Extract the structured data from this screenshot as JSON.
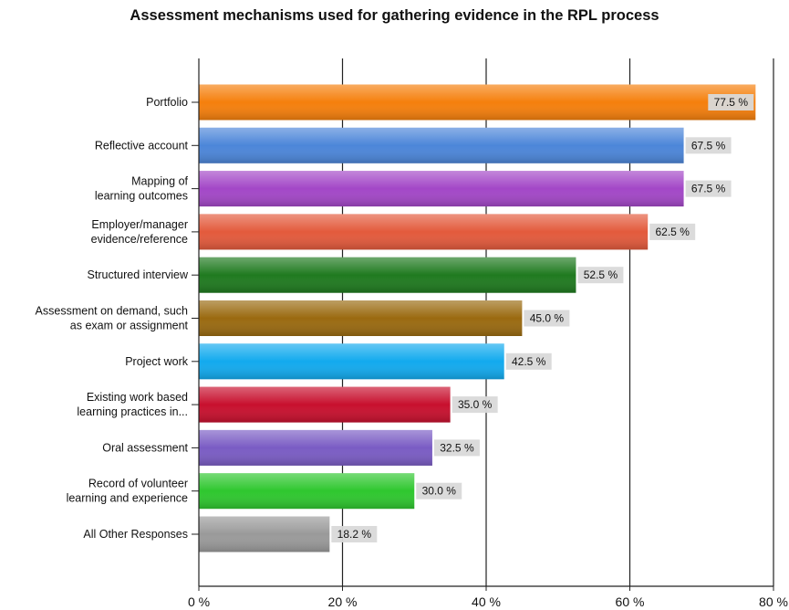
{
  "chart_data": {
    "type": "bar",
    "orientation": "horizontal",
    "title": "Assessment mechanisms used for gathering evidence in the RPL process",
    "categories": [
      [
        "Portfolio"
      ],
      [
        "Reflective account"
      ],
      [
        "Mapping of",
        "learning outcomes"
      ],
      [
        "Employer/manager",
        "evidence/reference"
      ],
      [
        "Structured interview"
      ],
      [
        "Assessment on demand, such",
        "as exam or assignment"
      ],
      [
        "Project work"
      ],
      [
        "Existing work based",
        "learning practices in..."
      ],
      [
        "Oral assessment"
      ],
      [
        "Record of volunteer",
        "learning and experience"
      ],
      [
        "All Other Responses"
      ]
    ],
    "values": [
      77.5,
      67.5,
      67.5,
      62.5,
      52.5,
      45.0,
      42.5,
      35.0,
      32.5,
      30.0,
      18.2
    ],
    "value_labels": [
      "77.5 %",
      "67.5 %",
      "67.5 %",
      "62.5 %",
      "52.5 %",
      "45.0 %",
      "42.5 %",
      "35.0 %",
      "32.5 %",
      "30.0 %",
      "18.2 %"
    ],
    "colors": [
      "#f57f0c",
      "#4c86d9",
      "#a347c7",
      "#e35a3c",
      "#1f7a1f",
      "#9a6a10",
      "#12aaee",
      "#c8102e",
      "#7a5cc4",
      "#2ec72e",
      "#9a9a9a"
    ],
    "xlim": [
      0,
      80
    ],
    "xticks": [
      0,
      20,
      40,
      60,
      80
    ],
    "xtick_labels": [
      "0 %",
      "20 %",
      "40 %",
      "60 %",
      "80 %"
    ],
    "grid": "vertical lines",
    "legend": "none"
  }
}
